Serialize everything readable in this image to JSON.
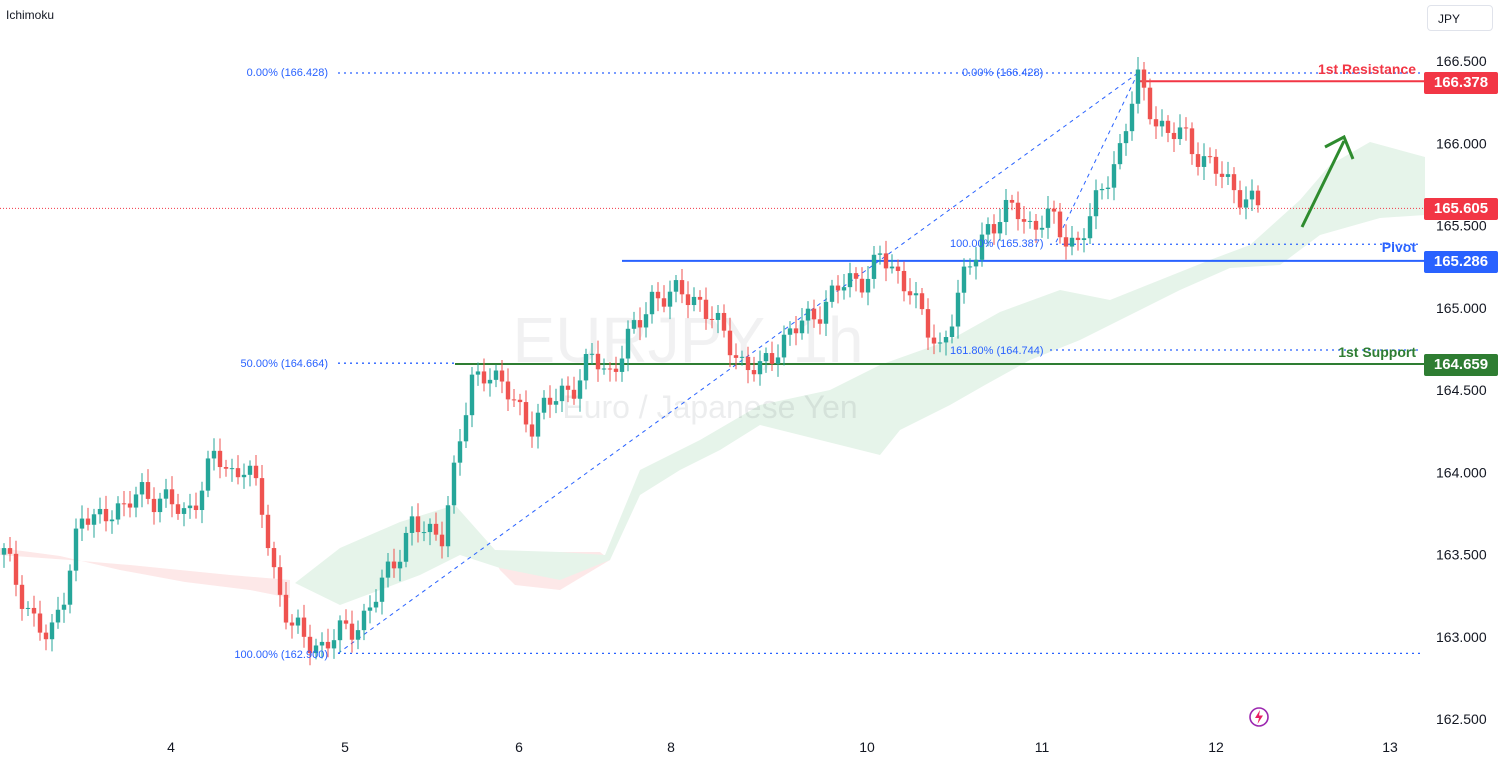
{
  "indicator": "Ichimoku",
  "currency": "JPY",
  "watermark": {
    "symbol": "EURJPY, 1h",
    "name": "Euro / Japanese Yen"
  },
  "colors": {
    "up": "#26a69a",
    "down": "#ef5350",
    "resistance": "#f23645",
    "pivot": "#2962ff",
    "support": "#2e7d32",
    "fib": "#2962ff",
    "cloud_bull": "#e6f4ea",
    "cloud_bear": "#fde8e8",
    "arrow": "#2e8b2e",
    "axis_text": "#131722"
  },
  "levels": {
    "resistance": {
      "label": "1st Resistance",
      "price": "166.378"
    },
    "pivot": {
      "label": "Pivot",
      "price": "165.286"
    },
    "support": {
      "label": "1st Support",
      "price": "164.659"
    },
    "last": {
      "price": "165.605"
    }
  },
  "fib_labels": {
    "left_top": "0.00% (166.428)",
    "left_mid": "50.00% (164.664)",
    "left_bottom": "100.00% (162.900)",
    "right_top": "0.00% (166.428)",
    "right_mid": "100.00% (165.387)",
    "right_ext": "161.80% (164.744)"
  },
  "chart_data": {
    "type": "candlestick",
    "title": "EURJPY, 1h",
    "subtitle": "Euro / Japanese Yen",
    "x_ticks": [
      "4",
      "5",
      "6",
      "8",
      "10",
      "11",
      "12",
      "13"
    ],
    "y_ticks": [
      "166.500",
      "166.000",
      "165.500",
      "165.000",
      "164.500",
      "164.000",
      "163.500",
      "163.000",
      "162.500"
    ],
    "y_range": [
      162.4,
      166.6
    ],
    "horizontal_levels": [
      {
        "name": "1st Resistance",
        "value": 166.378
      },
      {
        "name": "Pivot",
        "value": 165.286
      },
      {
        "name": "1st Support",
        "value": 164.659
      }
    ],
    "last_price": 165.605,
    "fibonacci_left": {
      "swing_low": 162.9,
      "swing_high": 166.428,
      "levels": {
        "0.00%": 166.428,
        "50.00%": 164.664,
        "100.00%": 162.9
      }
    },
    "fibonacci_right": {
      "levels": {
        "0.00%": 166.428,
        "100.00%": 165.387,
        "161.80%": 164.744
      }
    },
    "close_path": [
      163.5,
      163.3,
      163.1,
      162.95,
      163.3,
      163.7,
      163.7,
      163.8,
      163.75,
      163.9,
      163.85,
      163.8,
      163.75,
      163.9,
      164.1,
      164.0,
      164.05,
      163.8,
      163.35,
      163.05,
      162.98,
      162.95,
      163.0,
      163.05,
      163.15,
      163.3,
      163.5,
      163.7,
      163.6,
      163.65,
      164.1,
      164.55,
      164.65,
      164.5,
      164.4,
      164.3,
      164.4,
      164.5,
      164.55,
      164.7,
      164.6,
      164.75,
      164.9,
      165.1,
      165.05,
      165.1,
      165.05,
      164.9,
      164.8,
      164.65,
      164.6,
      164.75,
      164.85,
      164.9,
      165.0,
      165.1,
      165.15,
      165.2,
      165.3,
      165.2,
      165.15,
      164.85,
      164.75,
      165.05,
      165.25,
      165.5,
      165.55,
      165.6,
      165.5,
      165.55,
      165.45,
      165.4,
      165.55,
      165.8,
      166.0,
      166.378,
      166.2,
      166.05,
      166.05,
      165.95,
      165.85,
      165.75,
      165.7,
      165.605
    ]
  }
}
